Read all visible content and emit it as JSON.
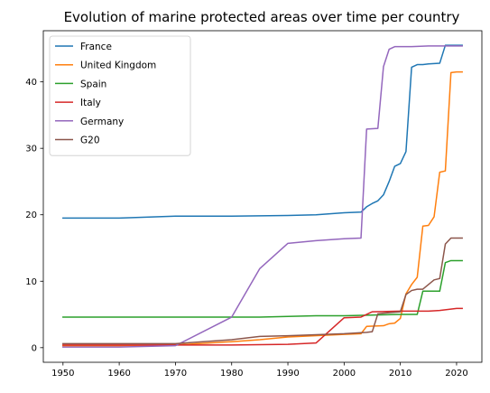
{
  "chart_data": {
    "type": "line",
    "title": "Evolution of marine protected areas over time per country",
    "xlabel": "",
    "ylabel": "",
    "xlim": [
      1946.5,
      2024.5
    ],
    "ylim": [
      -2.2,
      47.7
    ],
    "xticks": [
      1950,
      1960,
      1970,
      1980,
      1990,
      2000,
      2010,
      2020
    ],
    "yticks": [
      0,
      10,
      20,
      30,
      40
    ],
    "grid": false,
    "legend_position": "top-left",
    "series": [
      {
        "name": "France",
        "color": "#1f77b4",
        "points": [
          [
            1950,
            19.5
          ],
          [
            1960,
            19.5
          ],
          [
            1970,
            19.8
          ],
          [
            1980,
            19.8
          ],
          [
            1990,
            19.9
          ],
          [
            1995,
            20.0
          ],
          [
            2000,
            20.3
          ],
          [
            2003,
            20.4
          ],
          [
            2004,
            21.2
          ],
          [
            2005,
            21.7
          ],
          [
            2006,
            22.1
          ],
          [
            2007,
            23.0
          ],
          [
            2008,
            25.0
          ],
          [
            2009,
            27.3
          ],
          [
            2010,
            27.7
          ],
          [
            2011,
            29.5
          ],
          [
            2012,
            42.2
          ],
          [
            2013,
            42.6
          ],
          [
            2014,
            42.6
          ],
          [
            2015,
            42.7
          ],
          [
            2017,
            42.8
          ],
          [
            2018,
            45.5
          ],
          [
            2019,
            45.5
          ],
          [
            2020,
            45.5
          ],
          [
            2021,
            45.5
          ]
        ]
      },
      {
        "name": "United Kingdom",
        "color": "#ff7f0e",
        "points": [
          [
            1950,
            0.3
          ],
          [
            1960,
            0.3
          ],
          [
            1970,
            0.4
          ],
          [
            1980,
            0.9
          ],
          [
            1985,
            1.2
          ],
          [
            1990,
            1.6
          ],
          [
            2000,
            2.0
          ],
          [
            2003,
            2.1
          ],
          [
            2004,
            3.2
          ],
          [
            2007,
            3.3
          ],
          [
            2008,
            3.6
          ],
          [
            2009,
            3.7
          ],
          [
            2010,
            4.4
          ],
          [
            2011,
            8.1
          ],
          [
            2012,
            9.5
          ],
          [
            2013,
            10.6
          ],
          [
            2014,
            18.3
          ],
          [
            2015,
            18.4
          ],
          [
            2016,
            19.7
          ],
          [
            2017,
            26.4
          ],
          [
            2018,
            26.6
          ],
          [
            2019,
            41.4
          ],
          [
            2020,
            41.5
          ],
          [
            2021,
            41.5
          ]
        ]
      },
      {
        "name": "Spain",
        "color": "#2ca02c",
        "points": [
          [
            1950,
            4.6
          ],
          [
            1960,
            4.6
          ],
          [
            1970,
            4.6
          ],
          [
            1980,
            4.6
          ],
          [
            1985,
            4.6
          ],
          [
            1990,
            4.7
          ],
          [
            1995,
            4.8
          ],
          [
            2000,
            4.8
          ],
          [
            2005,
            4.9
          ],
          [
            2010,
            5.0
          ],
          [
            2013,
            5.0
          ],
          [
            2014,
            8.5
          ],
          [
            2015,
            8.5
          ],
          [
            2017,
            8.5
          ],
          [
            2018,
            12.8
          ],
          [
            2019,
            13.1
          ],
          [
            2020,
            13.1
          ],
          [
            2021,
            13.1
          ]
        ]
      },
      {
        "name": "Italy",
        "color": "#d62728",
        "points": [
          [
            1950,
            0.4
          ],
          [
            1960,
            0.4
          ],
          [
            1970,
            0.4
          ],
          [
            1980,
            0.4
          ],
          [
            1990,
            0.5
          ],
          [
            1995,
            0.7
          ],
          [
            2000,
            4.5
          ],
          [
            2003,
            4.6
          ],
          [
            2005,
            5.4
          ],
          [
            2010,
            5.5
          ],
          [
            2015,
            5.5
          ],
          [
            2017,
            5.6
          ],
          [
            2020,
            5.9
          ],
          [
            2021,
            5.9
          ]
        ]
      },
      {
        "name": "Germany",
        "color": "#9467bd",
        "points": [
          [
            1950,
            0.1
          ],
          [
            1960,
            0.1
          ],
          [
            1970,
            0.3
          ],
          [
            1980,
            4.6
          ],
          [
            1985,
            11.9
          ],
          [
            1990,
            15.7
          ],
          [
            1995,
            16.1
          ],
          [
            2000,
            16.4
          ],
          [
            2003,
            16.5
          ],
          [
            2004,
            32.9
          ],
          [
            2006,
            33.0
          ],
          [
            2007,
            42.3
          ],
          [
            2008,
            44.9
          ],
          [
            2009,
            45.3
          ],
          [
            2012,
            45.3
          ],
          [
            2015,
            45.4
          ],
          [
            2020,
            45.4
          ],
          [
            2021,
            45.4
          ]
        ]
      },
      {
        "name": "G20",
        "color": "#8c564b",
        "points": [
          [
            1950,
            0.6
          ],
          [
            1960,
            0.6
          ],
          [
            1970,
            0.6
          ],
          [
            1980,
            1.2
          ],
          [
            1985,
            1.7
          ],
          [
            1990,
            1.8
          ],
          [
            2000,
            2.1
          ],
          [
            2004,
            2.3
          ],
          [
            2005,
            2.4
          ],
          [
            2006,
            5.1
          ],
          [
            2007,
            5.2
          ],
          [
            2010,
            5.4
          ],
          [
            2011,
            8.0
          ],
          [
            2012,
            8.6
          ],
          [
            2013,
            8.8
          ],
          [
            2014,
            8.8
          ],
          [
            2015,
            9.5
          ],
          [
            2016,
            10.2
          ],
          [
            2017,
            10.4
          ],
          [
            2018,
            15.6
          ],
          [
            2019,
            16.5
          ],
          [
            2020,
            16.5
          ],
          [
            2021,
            16.5
          ]
        ]
      }
    ]
  }
}
